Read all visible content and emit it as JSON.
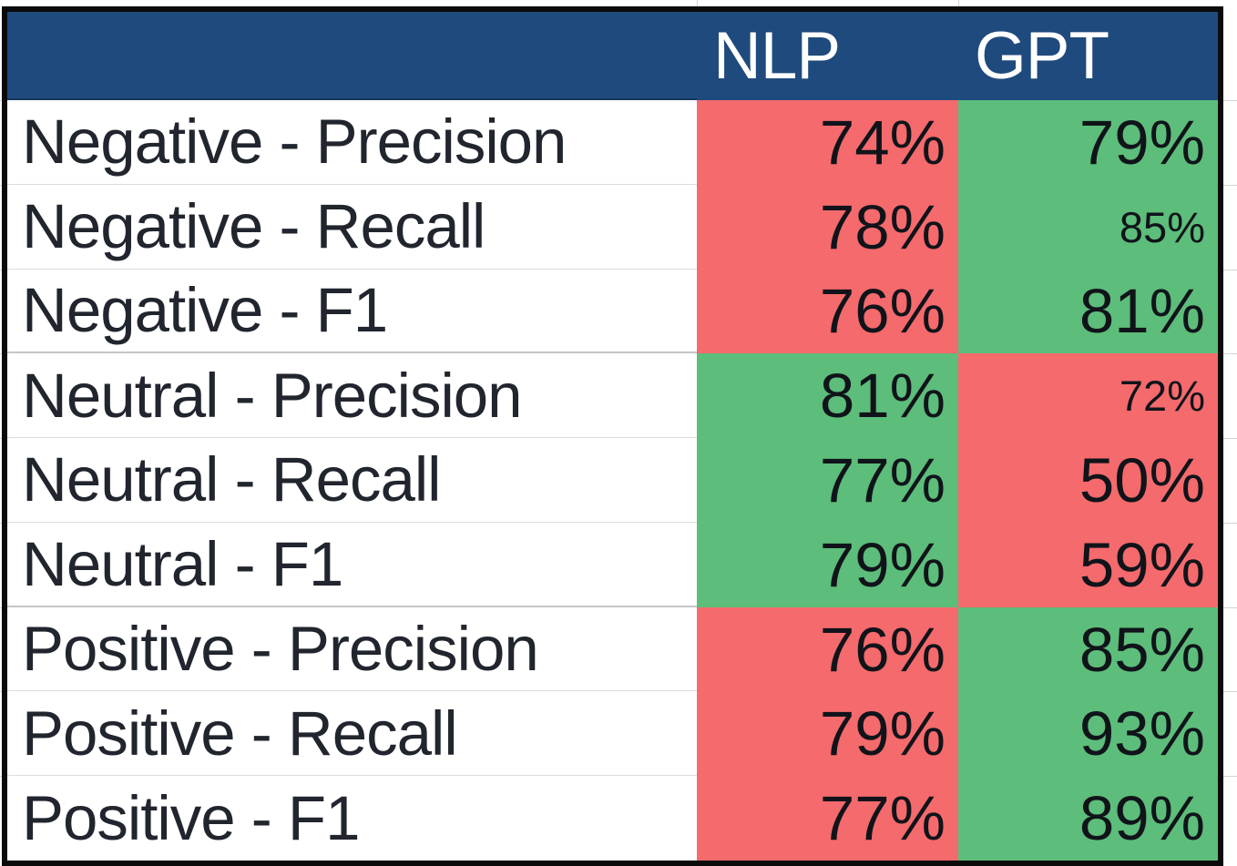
{
  "table": {
    "header": {
      "columns": [
        "NLP",
        "GPT"
      ]
    },
    "rows": [
      {
        "label": "Negative - Precision",
        "group_end": false,
        "cells": [
          {
            "text": "74%",
            "highlight": "red",
            "small": false
          },
          {
            "text": "79%",
            "highlight": "green",
            "small": false
          }
        ]
      },
      {
        "label": "Negative - Recall",
        "group_end": false,
        "cells": [
          {
            "text": "78%",
            "highlight": "red",
            "small": false
          },
          {
            "text": "85%",
            "highlight": "green",
            "small": true
          }
        ]
      },
      {
        "label": "Negative - F1",
        "group_end": true,
        "cells": [
          {
            "text": "76%",
            "highlight": "red",
            "small": false
          },
          {
            "text": "81%",
            "highlight": "green",
            "small": false
          }
        ]
      },
      {
        "label": "Neutral - Precision",
        "group_end": false,
        "cells": [
          {
            "text": "81%",
            "highlight": "green",
            "small": false
          },
          {
            "text": "72%",
            "highlight": "red",
            "small": true
          }
        ]
      },
      {
        "label": "Neutral - Recall",
        "group_end": false,
        "cells": [
          {
            "text": "77%",
            "highlight": "green",
            "small": false
          },
          {
            "text": "50%",
            "highlight": "red",
            "small": false
          }
        ]
      },
      {
        "label": "Neutral - F1",
        "group_end": true,
        "cells": [
          {
            "text": "79%",
            "highlight": "green",
            "small": false
          },
          {
            "text": "59%",
            "highlight": "red",
            "small": false
          }
        ]
      },
      {
        "label": "Positive - Precision",
        "group_end": false,
        "cells": [
          {
            "text": "76%",
            "highlight": "red",
            "small": false
          },
          {
            "text": "85%",
            "highlight": "green",
            "small": false
          }
        ]
      },
      {
        "label": "Positive - Recall",
        "group_end": false,
        "cells": [
          {
            "text": "79%",
            "highlight": "red",
            "small": false
          },
          {
            "text": "93%",
            "highlight": "green",
            "small": false
          }
        ]
      },
      {
        "label": "Positive - F1",
        "group_end": false,
        "cells": [
          {
            "text": "77%",
            "highlight": "red",
            "small": false
          },
          {
            "text": "89%",
            "highlight": "green",
            "small": false
          }
        ]
      }
    ]
  },
  "colors": {
    "header_bg": "#1f4a7d",
    "header_text": "#ffffff",
    "low_cell_bg": "#f56a6c",
    "high_cell_bg": "#5dbd7a",
    "label_text": "#21252e",
    "value_text": "#10141a",
    "table_border": "#0b0b0b",
    "row_separator": "#dcdcdc",
    "group_separator": "#c3c6c8"
  },
  "chart_data": {
    "type": "table",
    "title": "",
    "categories": [
      "Negative - Precision",
      "Negative - Recall",
      "Negative - F1",
      "Neutral - Precision",
      "Neutral - Recall",
      "Neutral - F1",
      "Positive - Precision",
      "Positive - Recall",
      "Positive - F1"
    ],
    "series": [
      {
        "name": "NLP",
        "values": [
          74,
          78,
          76,
          81,
          77,
          79,
          76,
          79,
          77
        ],
        "cell_highlights": [
          "red",
          "red",
          "red",
          "green",
          "green",
          "green",
          "red",
          "red",
          "red"
        ]
      },
      {
        "name": "GPT",
        "values": [
          79,
          85,
          81,
          72,
          50,
          59,
          85,
          93,
          89
        ],
        "cell_highlights": [
          "green",
          "green",
          "green",
          "red",
          "red",
          "red",
          "green",
          "green",
          "green"
        ]
      }
    ],
    "value_format": "percent",
    "legend_position": "none",
    "grid": false
  }
}
